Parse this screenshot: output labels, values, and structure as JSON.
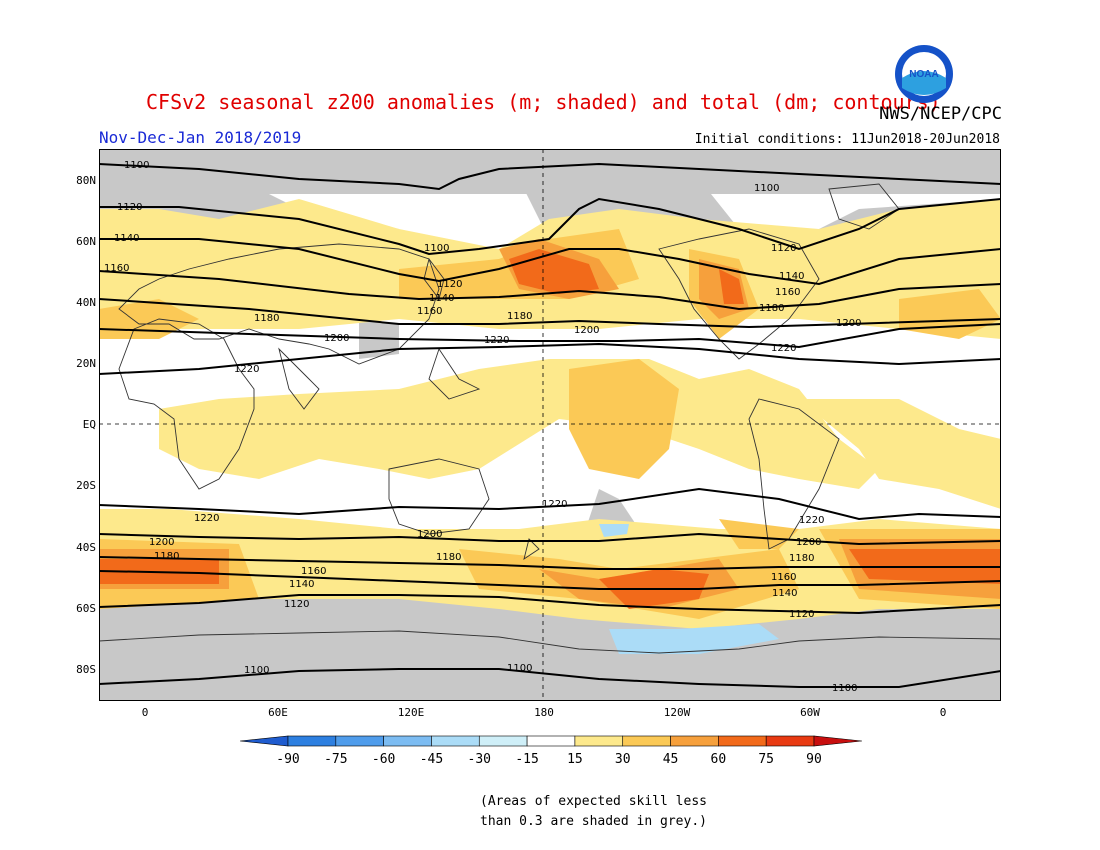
{
  "title": "CFSv2 seasonal z200 anomalies (m; shaded) and total (dm; contours)",
  "agency": "NWS/NCEP/CPC",
  "logo_text": "NOAA",
  "period": "Nov-Dec-Jan 2018/2019",
  "initial_conditions": "Initial conditions: 11Jun2018-20Jun2018",
  "lat_labels": [
    "80N",
    "60N",
    "40N",
    "20N",
    "EQ",
    "20S",
    "40S",
    "60S",
    "80S"
  ],
  "lon_labels": [
    "0",
    "60E",
    "120E",
    "180",
    "120W",
    "60W",
    "0"
  ],
  "colorbar": {
    "ticks": [
      "-90",
      "-75",
      "-60",
      "-45",
      "-30",
      "-15",
      "15",
      "30",
      "45",
      "60",
      "75",
      "90"
    ],
    "colors": [
      "#1f5ccf",
      "#2d7fe0",
      "#4f9ceb",
      "#7cbcf2",
      "#abdcf7",
      "#cfeff8",
      "#ffffff",
      "#fde98c",
      "#fbc956",
      "#f6a03c",
      "#f26a1a",
      "#e83a12",
      "#c80f0f"
    ]
  },
  "contour_labels": [
    "1100",
    "1120",
    "1140",
    "1160",
    "1180",
    "1200",
    "1220"
  ],
  "note": [
    "(Areas of expected skill less",
    "than 0.3 are shaded in grey.)"
  ],
  "colors": {
    "grey_low_skill": "#c8c8c8",
    "anom_15_30": "#fde98c",
    "anom_30_45": "#fbc956",
    "anom_45_60": "#f6a03c",
    "anom_60_75": "#f26a1a",
    "anom_neg_15_30": "#abdcf7"
  }
}
